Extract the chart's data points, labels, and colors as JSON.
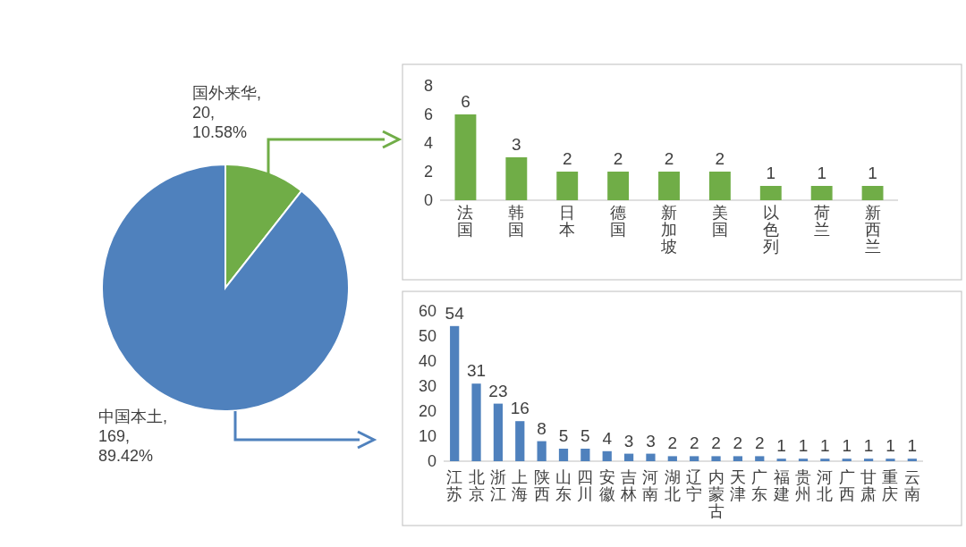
{
  "chart_data": [
    {
      "type": "pie",
      "categories": [
        "国外来华",
        "中国本土"
      ],
      "values": [
        20,
        169
      ],
      "colors": [
        "#70ad47",
        "#4f81bd"
      ],
      "value_labels": [
        ",\n20,\n10.58%",
        ",\n169,\n89.42%"
      ]
    },
    {
      "type": "bar",
      "categories": [
        "法国",
        "韩国",
        "日本",
        "德国",
        "新加坡",
        "美国",
        "以色列",
        "荷兰",
        "新西兰"
      ],
      "values": [
        6,
        3,
        2,
        2,
        2,
        2,
        1,
        1,
        1
      ],
      "color": "#70ad47",
      "ylim": [
        0,
        8
      ],
      "yticks": [
        0,
        2,
        4,
        6,
        8
      ],
      "data_labels": true
    },
    {
      "type": "bar",
      "categories": [
        "江苏",
        "北京",
        "浙江",
        "上海",
        "陕西",
        "山东",
        "四川",
        "安徽",
        "吉林",
        "河南",
        "湖北",
        "辽宁",
        "内蒙古",
        "天津",
        "广东",
        "福建",
        "贵州",
        "河北",
        "广西",
        "甘肃",
        "重庆",
        "云南"
      ],
      "values": [
        54,
        31,
        23,
        16,
        8,
        5,
        5,
        4,
        3,
        3,
        2,
        2,
        2,
        2,
        2,
        1,
        1,
        1,
        1,
        1,
        1,
        1
      ],
      "color": "#4f81bd",
      "ylim": [
        0,
        60
      ],
      "yticks": [
        0,
        10,
        20,
        30,
        40,
        50,
        60
      ],
      "data_labels": true
    }
  ]
}
